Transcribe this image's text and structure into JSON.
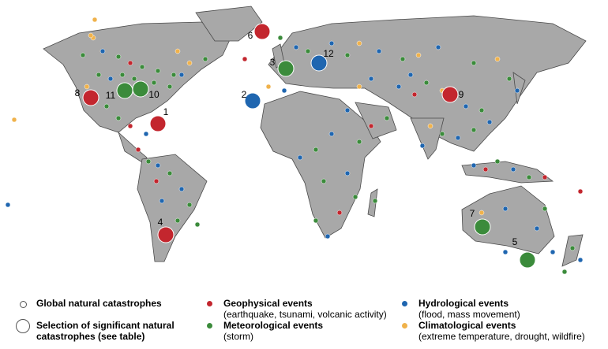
{
  "map": {
    "significant_events": [
      {
        "label": "1",
        "color": "#c3262e"
      },
      {
        "label": "2",
        "color": "#1f66b0"
      },
      {
        "label": "3",
        "color": "#3b8b3b"
      },
      {
        "label": "4",
        "color": "#c3262e"
      },
      {
        "label": "5",
        "color": "#3b8b3b"
      },
      {
        "label": "6",
        "color": "#c3262e"
      },
      {
        "label": "7",
        "color": "#3b8b3b"
      },
      {
        "label": "8",
        "color": "#c3262e"
      },
      {
        "label": "9",
        "color": "#c3262e"
      },
      {
        "label": "10",
        "color": "#3b8b3b"
      },
      {
        "label": "11",
        "color": "#3b8b3b"
      },
      {
        "label": "12",
        "color": "#1f66b0"
      }
    ]
  },
  "legend": {
    "items": [
      {
        "title": "Global natural catastrophes"
      },
      {
        "title": "Selection of significant natural catastrophes (see table)"
      },
      {
        "title": "Geophysical events",
        "subtitle": "(earthquake, tsunami, volcanic activity)",
        "color": "#c3262e"
      },
      {
        "title": "Meteorological events",
        "subtitle": "(storm)",
        "color": "#3b8b3b"
      },
      {
        "title": "Hydrological events",
        "subtitle": "(flood, mass movement)",
        "color": "#1f66b0"
      },
      {
        "title": "Climatological events",
        "subtitle": "(extreme temperature, drought, wildfire)",
        "color": "#f0b24b"
      }
    ]
  }
}
